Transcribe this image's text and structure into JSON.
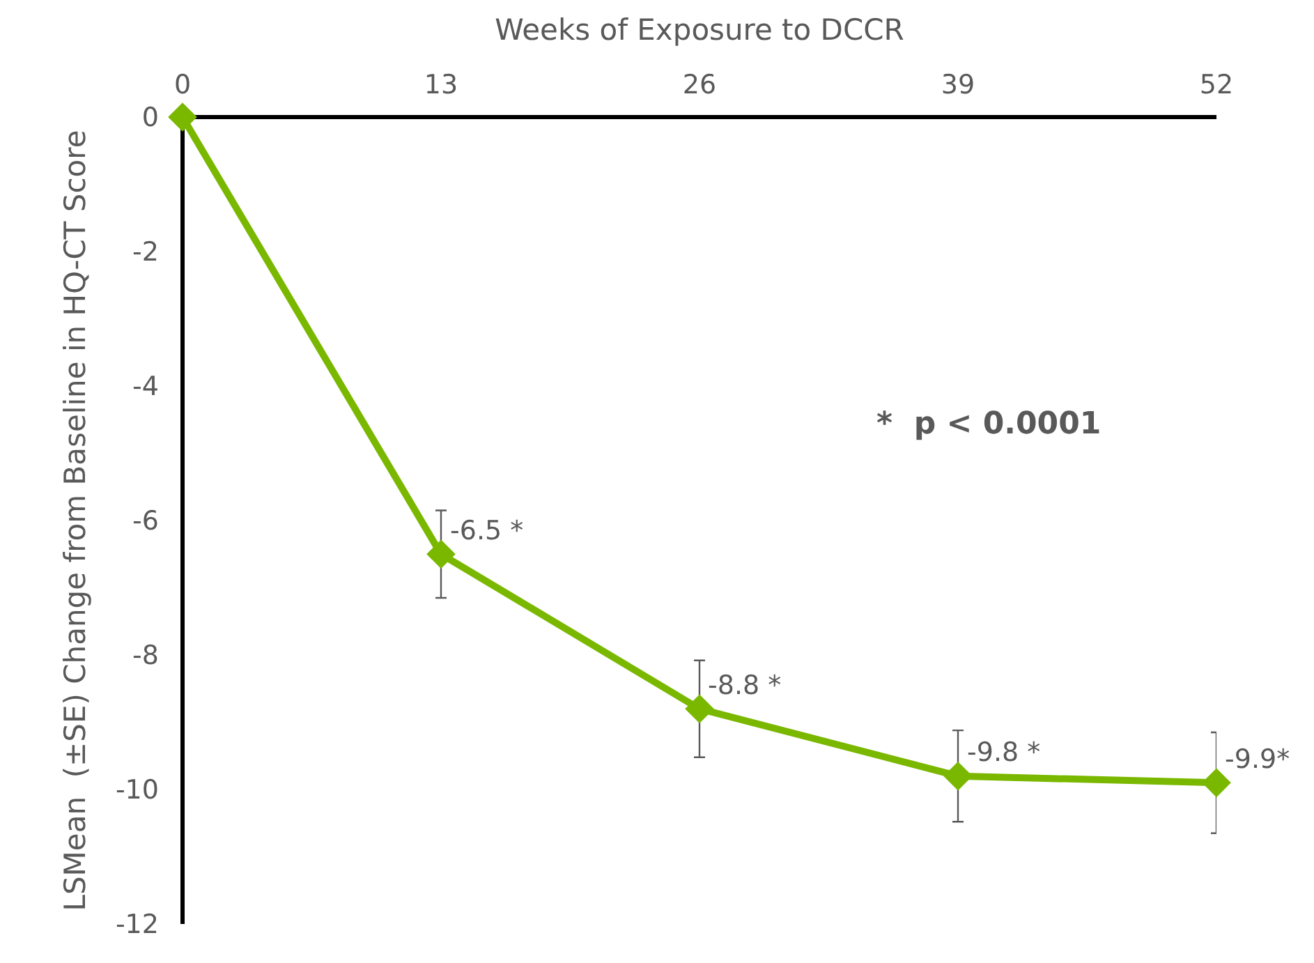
{
  "chart_data": {
    "type": "line",
    "xlabel": "Weeks of Exposure to DCCR",
    "ylabel": "LSMean  (±SE) Change from Baseline in HQ-CT Score",
    "x": [
      0,
      13,
      26,
      39,
      52
    ],
    "series": [
      {
        "color": "#7ab800",
        "values": [
          0,
          -6.5,
          -8.8,
          -9.8,
          -9.9
        ],
        "errors": [
          null,
          0.65,
          0.72,
          0.68,
          0.75
        ],
        "value_labels": [
          null,
          "-6.5 *",
          "-8.8 *",
          "-9.8 *",
          "-9.9*"
        ]
      }
    ],
    "xlim": [
      0,
      52
    ],
    "xticks": [
      0,
      13,
      26,
      39,
      52
    ],
    "ylim": [
      -12,
      0
    ],
    "yticks": [
      0,
      -2,
      -4,
      -6,
      -8,
      -10,
      -12
    ],
    "annotations": [
      "*  p < 0.0001"
    ],
    "marker": "diamond",
    "line_style": "solid"
  }
}
